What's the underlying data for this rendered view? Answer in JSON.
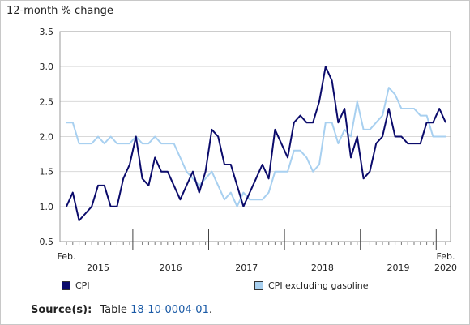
{
  "chart_data": {
    "type": "line",
    "ylabel": "12-month % change",
    "ylim": [
      0.5,
      3.5
    ],
    "y_ticks": [
      "0.5",
      "1.0",
      "1.5",
      "2.0",
      "2.5",
      "3.0",
      "3.5"
    ],
    "x": [
      "2015-02",
      "2015-03",
      "2015-04",
      "2015-05",
      "2015-06",
      "2015-07",
      "2015-08",
      "2015-09",
      "2015-10",
      "2015-11",
      "2015-12",
      "2016-01",
      "2016-02",
      "2016-03",
      "2016-04",
      "2016-05",
      "2016-06",
      "2016-07",
      "2016-08",
      "2016-09",
      "2016-10",
      "2016-11",
      "2016-12",
      "2017-01",
      "2017-02",
      "2017-03",
      "2017-04",
      "2017-05",
      "2017-06",
      "2017-07",
      "2017-08",
      "2017-09",
      "2017-10",
      "2017-11",
      "2017-12",
      "2018-01",
      "2018-02",
      "2018-03",
      "2018-04",
      "2018-05",
      "2018-06",
      "2018-07",
      "2018-08",
      "2018-09",
      "2018-10",
      "2018-11",
      "2018-12",
      "2019-01",
      "2019-02",
      "2019-03",
      "2019-04",
      "2019-05",
      "2019-06",
      "2019-07",
      "2019-08",
      "2019-09",
      "2019-10",
      "2019-11",
      "2019-12",
      "2020-01",
      "2020-02"
    ],
    "x_axis": {
      "first_month_label": "Feb.",
      "last_month_label": "Feb.",
      "year_labels": [
        "2015",
        "2016",
        "2017",
        "2018",
        "2019",
        "2020"
      ]
    },
    "series": [
      {
        "name": "CPI",
        "color": "#0b0b6b",
        "values": [
          1.0,
          1.2,
          0.8,
          0.9,
          1.0,
          1.3,
          1.3,
          1.0,
          1.0,
          1.4,
          1.6,
          2.0,
          1.4,
          1.3,
          1.7,
          1.5,
          1.5,
          1.3,
          1.1,
          1.3,
          1.5,
          1.2,
          1.5,
          2.1,
          2.0,
          1.6,
          1.6,
          1.3,
          1.0,
          1.2,
          1.4,
          1.6,
          1.4,
          2.1,
          1.9,
          1.7,
          2.2,
          2.3,
          2.2,
          2.2,
          2.5,
          3.0,
          2.8,
          2.2,
          2.4,
          1.7,
          2.0,
          1.4,
          1.5,
          1.9,
          2.0,
          2.4,
          2.0,
          2.0,
          1.9,
          1.9,
          1.9,
          2.2,
          2.2,
          2.4,
          2.2
        ]
      },
      {
        "name": "CPI excluding gasoline",
        "color": "#a8d0f0",
        "values": [
          2.2,
          2.2,
          1.9,
          1.9,
          1.9,
          2.0,
          1.9,
          2.0,
          1.9,
          1.9,
          1.9,
          2.0,
          1.9,
          1.9,
          2.0,
          1.9,
          1.9,
          1.9,
          1.7,
          1.5,
          1.4,
          1.3,
          1.4,
          1.5,
          1.3,
          1.1,
          1.2,
          1.0,
          1.2,
          1.1,
          1.1,
          1.1,
          1.2,
          1.5,
          1.5,
          1.5,
          1.8,
          1.8,
          1.7,
          1.5,
          1.6,
          2.2,
          2.2,
          1.9,
          2.1,
          2.0,
          2.5,
          2.1,
          2.1,
          2.2,
          2.3,
          2.7,
          2.6,
          2.4,
          2.4,
          2.4,
          2.3,
          2.3,
          2.0,
          2.0,
          2.0
        ]
      }
    ],
    "legend": [
      "CPI",
      "CPI excluding gasoline"
    ],
    "grid": true
  },
  "source": {
    "label": "Source(s):",
    "prefix": "Table ",
    "link_text": "18-10-0004-01",
    "suffix": "."
  }
}
